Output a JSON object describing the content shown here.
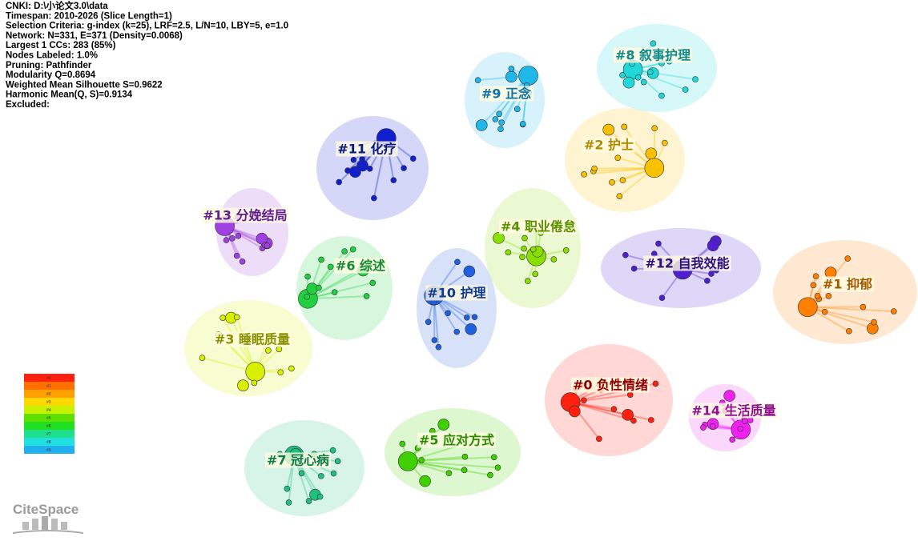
{
  "header": {
    "lines": [
      "CNKI: D:\\小论文3.0\\data",
      "Timespan: 2010-2026 (Slice Length=1)",
      "Selection Criteria: g-index (k=25), LRF=2.5, L/N=10, LBY=5, e=1.0",
      "Network: N=331, E=371 (Density=0.0068)",
      "Largest 1 CCs: 283 (85%)",
      "Nodes Labeled: 1.0%",
      "Pruning: Pathfinder",
      "Modularity Q=0.8694",
      "Weighted Mean Silhouette S=0.9622",
      "Harmonic Mean(Q, S)=0.9134",
      "Excluded:"
    ]
  },
  "clusters": [
    {
      "label": "#0 负性情绪",
      "color": "#ff2010"
    },
    {
      "label": "#1 抑郁",
      "color": "#ff8000"
    },
    {
      "label": "#2 护士",
      "color": "#f7c000"
    },
    {
      "label": "#3 睡眠质量",
      "color": "#d8f000"
    },
    {
      "label": "#4 职业倦怠",
      "color": "#88e000"
    },
    {
      "label": "#5 应对方式",
      "color": "#40d000"
    },
    {
      "label": "#6 综述",
      "color": "#20d040"
    },
    {
      "label": "#7 冠心病",
      "color": "#20c080"
    },
    {
      "label": "#8 叙事护理",
      "color": "#20d8d8"
    },
    {
      "label": "#9 正念",
      "color": "#20b8e8"
    },
    {
      "label": "#10 护理",
      "color": "#2060e0"
    },
    {
      "label": "#11 化疗",
      "color": "#1020d0"
    },
    {
      "label": "#12 自我效能",
      "color": "#5020d0"
    },
    {
      "label": "#13 分娩结局",
      "color": "#a040e0"
    },
    {
      "label": "#14 生活质量",
      "color": "#f020f0"
    }
  ],
  "legend": [
    {
      "label": "#0",
      "color": "#ff2010"
    },
    {
      "label": "#1",
      "color": "#ff7000"
    },
    {
      "label": "#2",
      "color": "#ffa000"
    },
    {
      "label": "#3",
      "color": "#ffd800"
    },
    {
      "label": "#4",
      "color": "#c8f000"
    },
    {
      "label": "#5",
      "color": "#60e000"
    },
    {
      "label": "#6",
      "color": "#20e020"
    },
    {
      "label": "#7",
      "color": "#20e090"
    },
    {
      "label": "#8",
      "color": "#20e0e0"
    },
    {
      "label": "#9",
      "color": "#20b0f0"
    }
  ],
  "logo": "CiteSpace"
}
